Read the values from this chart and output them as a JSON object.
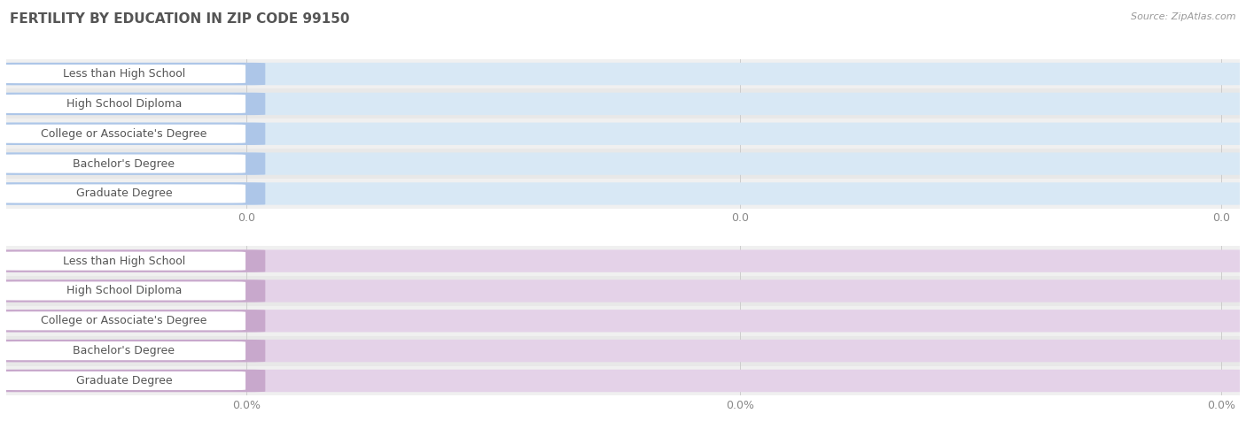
{
  "title": "FERTILITY BY EDUCATION IN ZIP CODE 99150",
  "source": "Source: ZipAtlas.com",
  "categories": [
    "Less than High School",
    "High School Diploma",
    "College or Associate's Degree",
    "Bachelor's Degree",
    "Graduate Degree"
  ],
  "top_values": [
    0.0,
    0.0,
    0.0,
    0.0,
    0.0
  ],
  "bottom_values": [
    0.0,
    0.0,
    0.0,
    0.0,
    0.0
  ],
  "top_bar_color": "#adc6e8",
  "top_bar_bg": "#d8e8f5",
  "bottom_bar_color": "#c8a8cc",
  "bottom_bar_bg": "#e4d2e8",
  "top_tick_labels": [
    "0.0",
    "0.0",
    "0.0"
  ],
  "bottom_tick_labels": [
    "0.0%",
    "0.0%",
    "0.0%"
  ],
  "fig_bg": "#ffffff",
  "row_bg_light": "#f0f0f0",
  "row_bg_dark": "#e8e8e8",
  "title_color": "#555555",
  "source_color": "#999999",
  "label_color": "#555555",
  "value_color": "#ffffff",
  "tick_color": "#888888",
  "grid_color": "#cccccc",
  "title_fontsize": 11,
  "source_fontsize": 8,
  "label_fontsize": 9,
  "value_fontsize": 8.5,
  "tick_fontsize": 9
}
